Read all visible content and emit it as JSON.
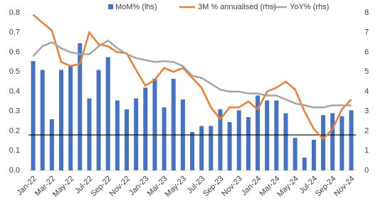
{
  "chart_data": {
    "type": "bar-line",
    "categories": [
      "Jan-22",
      null,
      "Mar-22",
      null,
      "May-22",
      null,
      "Jul-22",
      null,
      "Sep-22",
      null,
      "Nov-22",
      null,
      "Jan-23",
      null,
      "Mar-23",
      null,
      "May-23",
      null,
      "Jul-23",
      null,
      "Sep-23",
      null,
      "Nov-23",
      null,
      "Jan-24",
      null,
      "Mar-24",
      null,
      "May-24",
      null,
      "Jul-24",
      null,
      "Sep-24",
      null,
      "Nov-24"
    ],
    "series": [
      {
        "name": "MoM% (lhs)",
        "color": "#4472c4",
        "type": "bar",
        "axis": "y",
        "values": [
          0.555,
          0.51,
          0.26,
          0.51,
          0.53,
          0.645,
          0.365,
          0.51,
          0.575,
          0.355,
          0.31,
          0.365,
          0.42,
          0.465,
          0.32,
          0.465,
          0.36,
          0.195,
          0.225,
          0.225,
          0.31,
          0.245,
          0.305,
          0.27,
          0.38,
          0.355,
          0.355,
          0.29,
          0.165,
          0.065,
          0.155,
          0.28,
          0.29,
          0.275,
          0.305
        ]
      },
      {
        "name": "3M % annualised (rhs)",
        "color": "#ed7d31",
        "type": "line",
        "axis": "y2",
        "values": [
          7.9,
          7.5,
          7.1,
          5.5,
          5.3,
          5.4,
          7.0,
          6.4,
          6.3,
          6.0,
          5.95,
          5.1,
          4.3,
          4.6,
          5.2,
          5.0,
          5.2,
          4.7,
          4.2,
          3.2,
          2.6,
          3.2,
          3.2,
          3.5,
          3.1,
          4.0,
          4.2,
          4.5,
          4.1,
          3.0,
          2.1,
          1.6,
          2.1,
          3.1,
          3.6
        ]
      },
      {
        "name": "YoY% (rhs)",
        "color": "#a5a5a5",
        "type": "line",
        "axis": "y2",
        "values": [
          5.8,
          6.3,
          6.5,
          6.2,
          6.0,
          5.9,
          5.9,
          6.3,
          6.6,
          6.2,
          5.9,
          5.7,
          5.6,
          5.5,
          5.55,
          5.5,
          5.3,
          4.8,
          4.7,
          4.4,
          4.1,
          4.0,
          4.0,
          3.9,
          3.9,
          3.8,
          3.8,
          3.6,
          3.4,
          3.3,
          3.2,
          3.2,
          3.3,
          3.3,
          3.3
        ]
      }
    ],
    "reference_line": 0.18,
    "ylim": [
      0,
      0.8
    ],
    "yticks": [
      {
        "value": 0,
        "label": "0.0"
      },
      0.1,
      0.2,
      0.3,
      0.4,
      0.5,
      0.6,
      0.7,
      0.8
    ],
    "y2lim": [
      0,
      8
    ],
    "y2ticks": [
      0,
      1,
      2,
      3,
      4,
      5,
      6,
      7,
      8
    ],
    "legend": "top"
  }
}
